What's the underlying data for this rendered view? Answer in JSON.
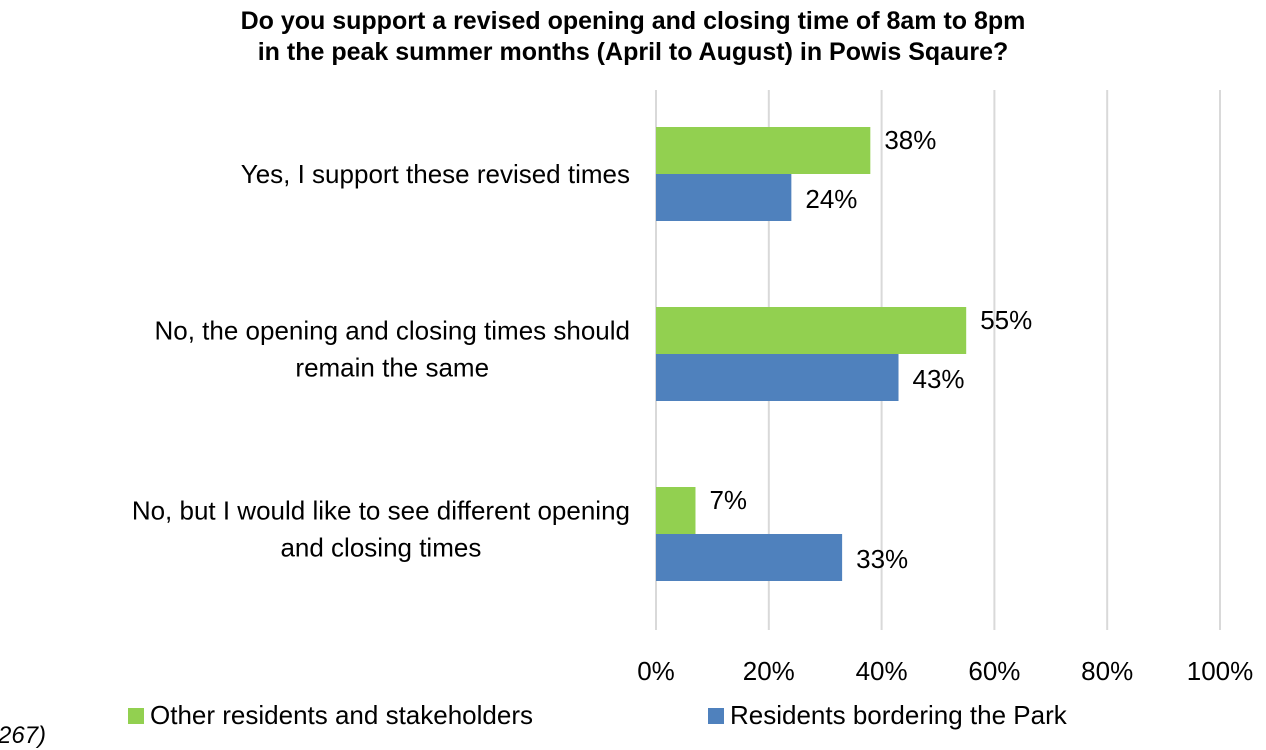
{
  "fragment_text": "267)",
  "chart_data": {
    "type": "bar",
    "orientation": "horizontal",
    "title": "Do you support a revised opening and closing time of 8am to 8pm\nin the peak summer months (April to August) in Powis Sqaure?",
    "categories": [
      [
        "Yes, I support these revised times"
      ],
      [
        "No, the opening and closing times should",
        "remain the same"
      ],
      [
        "No, but I would like to see different opening",
        "and closing times"
      ]
    ],
    "series": [
      {
        "name": "Other residents and stakeholders",
        "color": "#92D050",
        "values": [
          38,
          55,
          7
        ],
        "labels": [
          "38%",
          "55%",
          "7%"
        ]
      },
      {
        "name": "Residents bordering the Park",
        "color": "#4F81BD",
        "values": [
          24,
          43,
          33
        ],
        "labels": [
          "24%",
          "43%",
          "33%"
        ]
      }
    ],
    "xlim": [
      0,
      100
    ],
    "xticks": [
      "0%",
      "20%",
      "40%",
      "60%",
      "80%",
      "100%"
    ],
    "grid": true,
    "gridline_color": "#D9D9D9",
    "legend_position": "bottom"
  }
}
